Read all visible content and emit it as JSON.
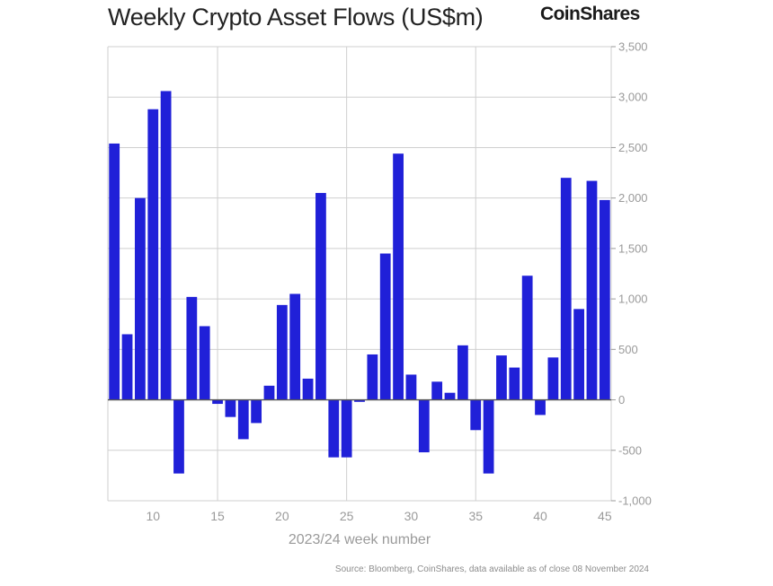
{
  "title": "Weekly Crypto Asset Flows (US$m)",
  "brand": "CoinShares",
  "source": "Source: Bloomberg, CoinShares, data available as of close 08 November 2024",
  "colors": {
    "bar": "#2020d8",
    "grid": "#cfcfcf",
    "text": "#9a9a9a"
  },
  "chart_data": {
    "type": "bar",
    "title": "Weekly Crypto Asset Flows (US$m)",
    "xlabel": "2023/24 week number",
    "ylabel": "",
    "ylim": [
      -1000,
      3500
    ],
    "yticks": [
      3500,
      3000,
      2500,
      2000,
      1500,
      1000,
      500,
      0,
      -500,
      -1000
    ],
    "ytick_labels": [
      "3,500",
      "3,000",
      "2,500",
      "2,000",
      "1,500",
      "1,000",
      "500",
      "0",
      "-500",
      "-1,000"
    ],
    "xlim": [
      6.5,
      45.5
    ],
    "xticks": [
      10,
      15,
      20,
      25,
      30,
      35,
      40,
      45
    ],
    "xtick_labels": [
      "10",
      "15",
      "20",
      "25",
      "30",
      "35",
      "40",
      "45"
    ],
    "vgrid": [
      15,
      25,
      35
    ],
    "y_axis_position": "right",
    "categories": [
      7,
      8,
      9,
      10,
      11,
      12,
      13,
      14,
      15,
      16,
      17,
      18,
      19,
      20,
      21,
      22,
      23,
      24,
      25,
      26,
      27,
      28,
      29,
      30,
      31,
      32,
      33,
      34,
      35,
      36,
      37,
      38,
      39,
      40,
      41,
      42,
      43,
      44,
      45
    ],
    "values": [
      2540,
      650,
      2000,
      2880,
      3060,
      -730,
      1020,
      730,
      -40,
      -170,
      -390,
      -230,
      140,
      940,
      1050,
      210,
      2050,
      -570,
      -570,
      -20,
      450,
      1450,
      2440,
      250,
      -520,
      180,
      70,
      540,
      -300,
      -730,
      440,
      320,
      1230,
      -150,
      420,
      2200,
      900,
      2170,
      1980
    ]
  }
}
